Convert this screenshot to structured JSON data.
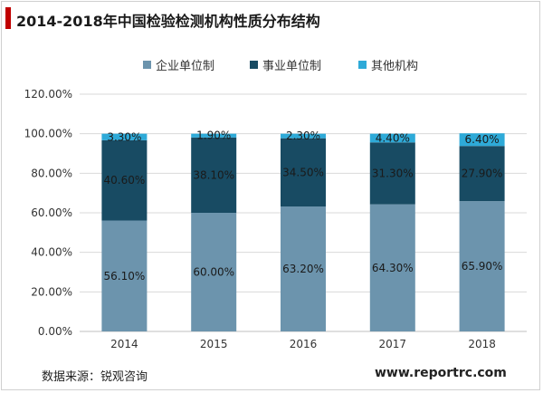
{
  "title": "2014-2018年中国检验检测机构性质分布结构",
  "source": "数据来源：锐观咨询",
  "website": "www.reportrc.com",
  "colors": {
    "accent": "#c00000",
    "series": [
      "#6c94ad",
      "#184b63",
      "#2eaad8"
    ]
  },
  "chart_data": {
    "type": "bar",
    "stacked": true,
    "categories": [
      "2014",
      "2015",
      "2016",
      "2017",
      "2018"
    ],
    "series": [
      {
        "name": "企业单位制",
        "values": [
          56.1,
          60.0,
          63.2,
          64.3,
          65.9
        ],
        "labels": [
          "56.10%",
          "60.00%",
          "63.20%",
          "64.30%",
          "65.90%"
        ]
      },
      {
        "name": "事业单位制",
        "values": [
          40.6,
          38.1,
          34.5,
          31.3,
          27.9
        ],
        "labels": [
          "40.60%",
          "38.10%",
          "34.50%",
          "31.30%",
          "27.90%"
        ]
      },
      {
        "name": "其他机构",
        "values": [
          3.3,
          1.9,
          2.3,
          4.4,
          6.4
        ],
        "labels": [
          "3.30%",
          "1.90%",
          "2.30%",
          "4.40%",
          "6.40%"
        ]
      }
    ],
    "ylim": [
      0,
      120
    ],
    "yticks": [
      "0.00%",
      "20.00%",
      "40.00%",
      "60.00%",
      "80.00%",
      "100.00%",
      "120.00%"
    ],
    "grid": true,
    "legend_position": "top"
  }
}
